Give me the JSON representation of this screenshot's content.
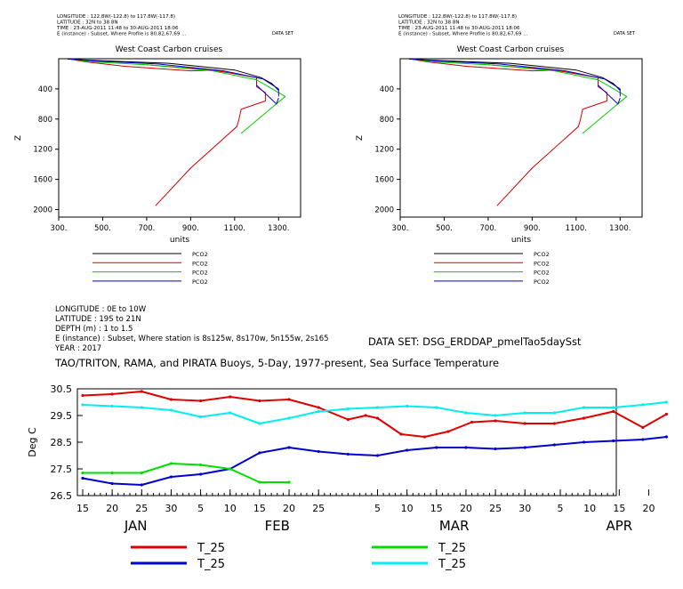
{
  "chart_data": [
    {
      "type": "line",
      "header": [
        "LONGITUDE : 122.8W(-122.8) to 117.8W(-117.8)",
        "LATITUDE : 32N to 38.8N",
        "TIME : 23-AUG-2011 11:48 to 30-AUG-2011 18:06",
        "E (instance) : Subset, Where Profile is 80,82,67,69 ..."
      ],
      "dataset": "DATA SET",
      "title": "West Coast Carbon cruises",
      "xlabel": "units",
      "ylabel": "Z",
      "xlim": [
        300,
        1400
      ],
      "ylim": [
        2100,
        0
      ],
      "y_inverted": true,
      "xticks": [
        "300.",
        "500.",
        "700.",
        "900.",
        "1100.",
        "1300."
      ],
      "yticks": [
        "400",
        "800",
        "1200",
        "1600",
        "2000"
      ],
      "legend": [
        {
          "name": "PCO2",
          "color": "#000000"
        },
        {
          "name": "PCO2",
          "color": "#cc0000"
        },
        {
          "name": "PCO2",
          "color": "#00cc00"
        },
        {
          "name": "PCO2",
          "color": "#0000cc"
        }
      ],
      "series": [
        {
          "name": "PCO2",
          "color": "#000000",
          "points": [
            [
              340,
              5
            ],
            [
              480,
              25
            ],
            [
              800,
              60
            ],
            [
              1100,
              150
            ],
            [
              1220,
              250
            ],
            [
              1270,
              330
            ],
            [
              1300,
              420
            ]
          ]
        },
        {
          "name": "PCO2",
          "color": "#cc0000",
          "points": [
            [
              350,
              5
            ],
            [
              420,
              40
            ],
            [
              600,
              100
            ],
            [
              900,
              160
            ],
            [
              1020,
              150
            ]
          ]
        },
        {
          "name": "PCO2",
          "color": "#cc0000",
          "points": [
            [
              700,
              80
            ],
            [
              1000,
              150
            ],
            [
              1200,
              250
            ],
            [
              1200,
              370
            ],
            [
              1240,
              450
            ],
            [
              1240,
              560
            ],
            [
              1130,
              670
            ],
            [
              1120,
              800
            ],
            [
              1110,
              900
            ],
            [
              900,
              1450
            ],
            [
              740,
              1950
            ]
          ]
        },
        {
          "name": "PCO2",
          "color": "#00cc00",
          "points": [
            [
              360,
              5
            ],
            [
              440,
              40
            ],
            [
              700,
              80
            ],
            [
              1000,
              160
            ],
            [
              1200,
              280
            ],
            [
              1330,
              500
            ],
            [
              1130,
              990
            ]
          ]
        },
        {
          "name": "PCO2",
          "color": "#0000cc",
          "points": [
            [
              350,
              5
            ],
            [
              460,
              30
            ],
            [
              750,
              70
            ],
            [
              1050,
              160
            ],
            [
              1230,
              270
            ],
            [
              1300,
              400
            ],
            [
              1300,
              500
            ]
          ]
        },
        {
          "name": "PCO2",
          "color": "#0000cc",
          "points": [
            [
              1200,
              350
            ],
            [
              1290,
              600
            ],
            [
              1300,
              520
            ]
          ]
        }
      ]
    },
    {
      "type": "line",
      "header": [
        "LONGITUDE : 122.8W(-122.8) to 117.8W(-117.8)",
        "LATITUDE : 32N to 38.8N",
        "TIME : 23-AUG-2011 11:48 to 30-AUG-2011 18:06",
        "E (instance) : Subset, Where Profile is 80,82,67,69 ..."
      ],
      "dataset": "DATA SET",
      "title": "West Coast Carbon cruises",
      "xlabel": "units",
      "ylabel": "Z",
      "xlim": [
        300,
        1400
      ],
      "ylim": [
        2100,
        0
      ],
      "y_inverted": true,
      "xticks": [
        "300.",
        "500.",
        "700.",
        "900.",
        "1100.",
        "1300."
      ],
      "yticks": [
        "400",
        "800",
        "1200",
        "1600",
        "2000"
      ],
      "legend": [
        {
          "name": "PCO2",
          "color": "#000000"
        },
        {
          "name": "PCO2",
          "color": "#cc0000"
        },
        {
          "name": "PCO2",
          "color": "#00cc00"
        },
        {
          "name": "PCO2",
          "color": "#0000cc"
        }
      ],
      "series": [
        {
          "name": "PCO2",
          "color": "#000000",
          "points": [
            [
              340,
              5
            ],
            [
              480,
              25
            ],
            [
              800,
              60
            ],
            [
              1100,
              150
            ],
            [
              1220,
              250
            ],
            [
              1270,
              330
            ],
            [
              1300,
              420
            ]
          ]
        },
        {
          "name": "PCO2",
          "color": "#cc0000",
          "points": [
            [
              350,
              5
            ],
            [
              420,
              40
            ],
            [
              600,
              100
            ],
            [
              900,
              160
            ],
            [
              1020,
              150
            ]
          ]
        },
        {
          "name": "PCO2",
          "color": "#cc0000",
          "points": [
            [
              700,
              80
            ],
            [
              1000,
              150
            ],
            [
              1200,
              250
            ],
            [
              1200,
              370
            ],
            [
              1240,
              450
            ],
            [
              1240,
              560
            ],
            [
              1130,
              670
            ],
            [
              1120,
              800
            ],
            [
              1110,
              900
            ],
            [
              900,
              1450
            ],
            [
              740,
              1950
            ]
          ]
        },
        {
          "name": "PCO2",
          "color": "#00cc00",
          "points": [
            [
              360,
              5
            ],
            [
              440,
              40
            ],
            [
              700,
              80
            ],
            [
              1000,
              160
            ],
            [
              1200,
              280
            ],
            [
              1330,
              500
            ],
            [
              1130,
              990
            ]
          ]
        },
        {
          "name": "PCO2",
          "color": "#0000cc",
          "points": [
            [
              350,
              5
            ],
            [
              460,
              30
            ],
            [
              750,
              70
            ],
            [
              1050,
              160
            ],
            [
              1230,
              270
            ],
            [
              1300,
              400
            ],
            [
              1300,
              500
            ]
          ]
        },
        {
          "name": "PCO2",
          "color": "#0000cc",
          "points": [
            [
              1200,
              350
            ],
            [
              1290,
              600
            ],
            [
              1300,
              520
            ]
          ]
        }
      ]
    },
    {
      "type": "line",
      "header": [
        "LONGITUDE : 0E to 10W",
        "LATITUDE : 19S to 21N",
        "DEPTH (m) : 1 to 1.5",
        "E (instance) : Subset, Where station is 8s125w, 8s170w, 5n155w, 2s165",
        "YEAR : 2017"
      ],
      "dataset": "DATA SET: DSG_ERDDAP_pmelTao5daySst",
      "title": "TAO/TRITON, RAMA, and PIRATA Buoys, 5-Day, 1977-present, Sea Surface Temperature",
      "ylabel": "Deg C",
      "ylim": [
        26.5,
        30.5
      ],
      "yticks": [
        "26.5",
        "27.5",
        "28.5",
        "29.5",
        "30.5"
      ],
      "x_units": "days since Jan 15, 2017",
      "xlim": [
        0,
        111
      ],
      "day_ticks": [
        {
          "d": 0,
          "label": "15"
        },
        {
          "d": 5,
          "label": "20"
        },
        {
          "d": 10,
          "label": "25"
        },
        {
          "d": 15,
          "label": "30"
        },
        {
          "d": 20,
          "label": "5"
        },
        {
          "d": 25,
          "label": "10"
        },
        {
          "d": 30,
          "label": "15"
        },
        {
          "d": 35,
          "label": "20"
        },
        {
          "d": 40,
          "label": "25"
        },
        {
          "d": 50,
          "label": "5"
        },
        {
          "d": 55,
          "label": "10"
        },
        {
          "d": 60,
          "label": "15"
        },
        {
          "d": 65,
          "label": "20"
        },
        {
          "d": 70,
          "label": "25"
        },
        {
          "d": 75,
          "label": "30"
        },
        {
          "d": 81,
          "label": "5"
        },
        {
          "d": 86,
          "label": "10"
        },
        {
          "d": 91,
          "label": "15"
        },
        {
          "d": 96,
          "label": "20"
        }
      ],
      "month_labels": [
        {
          "d": 9,
          "label": "JAN"
        },
        {
          "d": 33,
          "label": "FEB"
        },
        {
          "d": 63,
          "label": "MAR"
        },
        {
          "d": 91,
          "label": "APR"
        }
      ],
      "legend": [
        {
          "name": "T_25",
          "color": "#dd0000"
        },
        {
          "name": "T_25",
          "color": "#0000cc"
        },
        {
          "name": "T_25",
          "color": "#00dd00"
        },
        {
          "name": "T_25",
          "color": "#00eeee"
        }
      ],
      "series": [
        {
          "name": "T_25",
          "color": "#dd0000",
          "x": [
            0,
            5,
            10,
            15,
            20,
            25,
            30,
            35,
            40,
            45,
            48,
            50,
            54,
            58,
            62,
            66,
            70,
            75,
            80,
            85,
            90,
            95,
            99
          ],
          "y": [
            30.25,
            30.3,
            30.4,
            30.1,
            30.05,
            30.2,
            30.05,
            30.1,
            29.8,
            29.35,
            29.5,
            29.4,
            28.8,
            28.7,
            28.9,
            29.25,
            29.3,
            29.2,
            29.2,
            29.4,
            29.65,
            29.05,
            29.55
          ]
        },
        {
          "name": "T_25",
          "color": "#0000cc",
          "x": [
            0,
            5,
            10,
            15,
            20,
            25,
            30,
            35,
            40,
            45,
            50,
            55,
            60,
            65,
            70,
            75,
            80,
            85,
            90,
            95,
            99
          ],
          "y": [
            27.15,
            26.95,
            26.9,
            27.2,
            27.3,
            27.5,
            28.1,
            28.3,
            28.15,
            28.05,
            28.0,
            28.2,
            28.3,
            28.3,
            28.25,
            28.3,
            28.4,
            28.5,
            28.55,
            28.6,
            28.7
          ]
        },
        {
          "name": "T_25",
          "color": "#00dd00",
          "x": [
            0,
            5,
            10,
            15,
            20,
            25,
            30,
            35
          ],
          "y": [
            27.35,
            27.35,
            27.35,
            27.7,
            27.65,
            27.5,
            27.0,
            27.0
          ]
        },
        {
          "name": "T_25",
          "color": "#00eeee",
          "x": [
            0,
            5,
            10,
            15,
            20,
            25,
            30,
            35,
            40,
            45,
            50,
            55,
            60,
            65,
            70,
            75,
            80,
            85,
            90,
            95,
            99
          ],
          "y": [
            29.9,
            29.85,
            29.8,
            29.7,
            29.45,
            29.6,
            29.2,
            29.4,
            29.65,
            29.75,
            29.8,
            29.85,
            29.8,
            29.6,
            29.5,
            29.6,
            29.6,
            29.8,
            29.8,
            29.9,
            30.0
          ]
        }
      ]
    }
  ]
}
